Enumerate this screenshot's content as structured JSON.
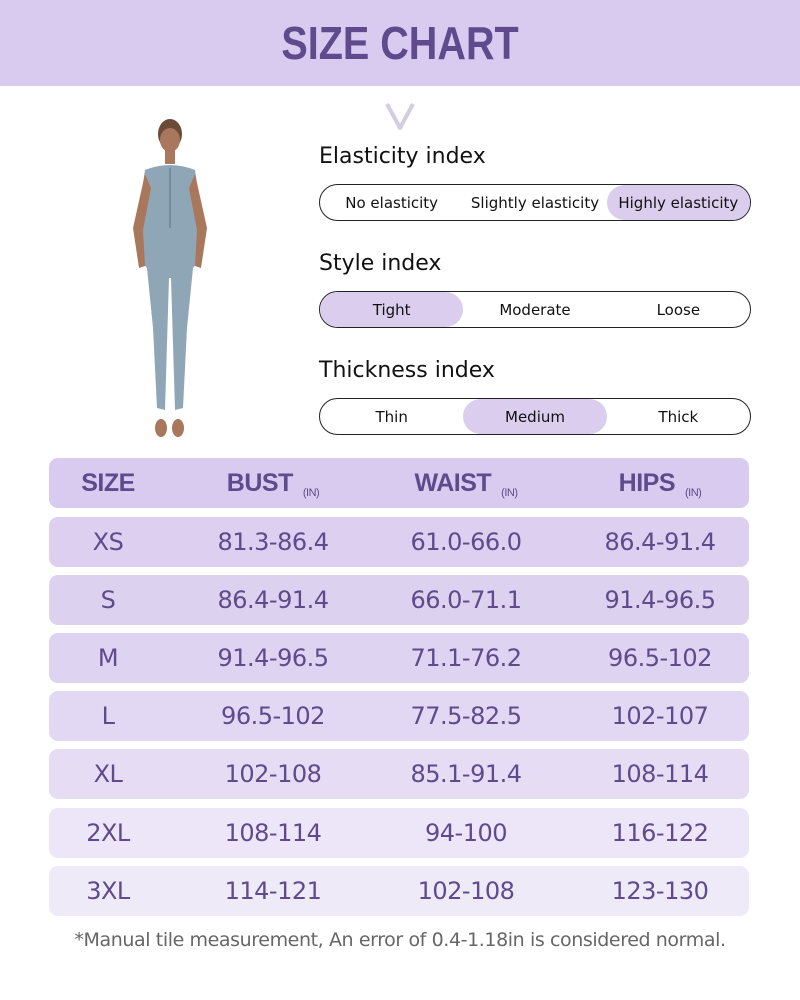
{
  "title": "SIZE CHART",
  "colors": {
    "accent": "#5e4a8c",
    "band": "#d9caef",
    "selected": "#dacdee"
  },
  "indices": [
    {
      "label": "Elasticity index",
      "options": [
        "No elasticity",
        "Slightly elasticity",
        "Highly elasticity"
      ],
      "selected": 2
    },
    {
      "label": "Style index",
      "options": [
        "Tight",
        "Moderate",
        "Loose"
      ],
      "selected": 0
    },
    {
      "label": "Thickness index",
      "options": [
        "Thin",
        "Medium",
        "Thick"
      ],
      "selected": 1
    }
  ],
  "table": {
    "headers": [
      {
        "label": "SIZE",
        "unit": ""
      },
      {
        "label": "BUST",
        "unit": "(IN)"
      },
      {
        "label": "WAIST",
        "unit": "(IN)"
      },
      {
        "label": "HIPS",
        "unit": "(IN)"
      }
    ],
    "rows": [
      [
        "XS",
        "81.3-86.4",
        "61.0-66.0",
        "86.4-91.4"
      ],
      [
        "S",
        "86.4-91.4",
        "66.0-71.1",
        "91.4-96.5"
      ],
      [
        "M",
        "91.4-96.5",
        "71.1-76.2",
        "96.5-102"
      ],
      [
        "L",
        "96.5-102",
        "77.5-82.5",
        "102-107"
      ],
      [
        "XL",
        "102-108",
        "85.1-91.4",
        "108-114"
      ],
      [
        "2XL",
        "108-114",
        "94-100",
        "116-122"
      ],
      [
        "3XL",
        "114-121",
        "102-108",
        "123-130"
      ]
    ]
  },
  "note": "*Manual tile measurement, An error of 0.4-1.18in is considered normal."
}
